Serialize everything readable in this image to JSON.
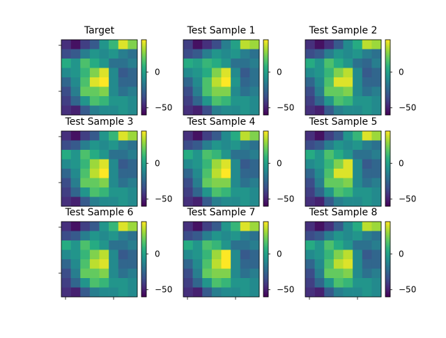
{
  "figure": {
    "background": "#ffffff",
    "colormap": "viridis",
    "colorbar_ticks": [
      0,
      -50
    ]
  },
  "chart_data": [
    {
      "type": "heatmap",
      "title": "Target",
      "vmin": -60,
      "vmax": 45,
      "ylabel_ticks_visible": true,
      "xlabel_ticks_visible": false,
      "matrix": [
        [
          -45,
          -55,
          -40,
          -30,
          -5,
          10,
          40,
          25
        ],
        [
          -35,
          -30,
          -15,
          -5,
          -10,
          -5,
          -15,
          -20
        ],
        [
          5,
          -5,
          15,
          5,
          -5,
          -20,
          -20,
          -15
        ],
        [
          -10,
          -5,
          10,
          25,
          40,
          -10,
          -30,
          -25
        ],
        [
          -25,
          -10,
          15,
          40,
          45,
          -10,
          -25,
          -25
        ],
        [
          -35,
          -15,
          20,
          20,
          25,
          -10,
          -20,
          -15
        ],
        [
          -40,
          -25,
          -5,
          15,
          10,
          -5,
          -5,
          -10
        ],
        [
          -45,
          -50,
          -30,
          -15,
          -10,
          -10,
          -5,
          -10
        ]
      ]
    },
    {
      "type": "heatmap",
      "title": "Test Sample 1",
      "vmin": -60,
      "vmax": 45,
      "ylabel_ticks_visible": false,
      "xlabel_ticks_visible": false,
      "matrix": [
        [
          -40,
          -55,
          -45,
          -35,
          -15,
          0,
          35,
          30
        ],
        [
          -35,
          -30,
          -15,
          -5,
          -10,
          -5,
          -15,
          -20
        ],
        [
          5,
          0,
          10,
          5,
          -5,
          -20,
          -20,
          -15
        ],
        [
          -10,
          -5,
          5,
          25,
          40,
          -10,
          -30,
          -20
        ],
        [
          -25,
          -10,
          15,
          35,
          45,
          -5,
          -25,
          -20
        ],
        [
          -35,
          -15,
          15,
          25,
          25,
          -10,
          -20,
          -15
        ],
        [
          -40,
          -25,
          -5,
          15,
          10,
          -5,
          -5,
          -10
        ],
        [
          -45,
          -50,
          -35,
          -15,
          -10,
          -10,
          -5,
          -10
        ]
      ]
    },
    {
      "type": "heatmap",
      "title": "Test Sample 2",
      "vmin": -60,
      "vmax": 45,
      "ylabel_ticks_visible": false,
      "xlabel_ticks_visible": false,
      "matrix": [
        [
          -45,
          -55,
          -45,
          -30,
          -10,
          5,
          35,
          30
        ],
        [
          -35,
          -30,
          -15,
          -5,
          -10,
          -5,
          -15,
          -20
        ],
        [
          5,
          -5,
          15,
          5,
          -5,
          -20,
          -25,
          -15
        ],
        [
          -10,
          -5,
          10,
          25,
          35,
          -10,
          -30,
          -25
        ],
        [
          -25,
          -10,
          15,
          40,
          40,
          -10,
          -25,
          -25
        ],
        [
          -35,
          -15,
          20,
          20,
          25,
          -10,
          -20,
          -15
        ],
        [
          -40,
          -25,
          -5,
          15,
          10,
          -5,
          -5,
          -10
        ],
        [
          -45,
          -50,
          -30,
          -15,
          -10,
          -10,
          -5,
          -10
        ]
      ]
    },
    {
      "type": "heatmap",
      "title": "Test Sample 3",
      "vmin": -60,
      "vmax": 45,
      "ylabel_ticks_visible": true,
      "xlabel_ticks_visible": false,
      "matrix": [
        [
          -45,
          -55,
          -40,
          -30,
          -5,
          10,
          40,
          30
        ],
        [
          -35,
          -30,
          -15,
          -5,
          -10,
          -5,
          -15,
          -20
        ],
        [
          5,
          -5,
          15,
          5,
          -5,
          -20,
          -20,
          -15
        ],
        [
          -10,
          -5,
          10,
          30,
          40,
          -10,
          -30,
          -25
        ],
        [
          -25,
          -10,
          15,
          35,
          45,
          -10,
          -25,
          -25
        ],
        [
          -35,
          -15,
          20,
          20,
          25,
          -10,
          -20,
          -15
        ],
        [
          -40,
          -25,
          -5,
          15,
          10,
          -5,
          -5,
          -10
        ],
        [
          -45,
          -50,
          -30,
          -15,
          -10,
          -10,
          -5,
          -10
        ]
      ]
    },
    {
      "type": "heatmap",
      "title": "Test Sample 4",
      "vmin": -60,
      "vmax": 45,
      "ylabel_ticks_visible": false,
      "xlabel_ticks_visible": false,
      "matrix": [
        [
          -45,
          -55,
          -40,
          -30,
          -10,
          5,
          35,
          25
        ],
        [
          -35,
          -30,
          -15,
          -5,
          -10,
          -5,
          -15,
          -20
        ],
        [
          5,
          -5,
          15,
          10,
          -5,
          -20,
          -20,
          -15
        ],
        [
          -10,
          -5,
          10,
          30,
          40,
          -10,
          -30,
          -25
        ],
        [
          -25,
          -10,
          15,
          35,
          45,
          -10,
          -25,
          -25
        ],
        [
          -35,
          -15,
          20,
          25,
          25,
          -10,
          -20,
          -15
        ],
        [
          -40,
          -25,
          -5,
          15,
          10,
          -5,
          -5,
          -10
        ],
        [
          -45,
          -50,
          -30,
          -15,
          -10,
          -10,
          -5,
          -10
        ]
      ]
    },
    {
      "type": "heatmap",
      "title": "Test Sample 5",
      "vmin": -60,
      "vmax": 45,
      "ylabel_ticks_visible": false,
      "xlabel_ticks_visible": false,
      "matrix": [
        [
          -45,
          -55,
          -40,
          -30,
          -5,
          10,
          40,
          30
        ],
        [
          -35,
          -30,
          -15,
          -5,
          -10,
          -5,
          -15,
          -20
        ],
        [
          5,
          -5,
          15,
          5,
          -5,
          -20,
          -20,
          -15
        ],
        [
          -10,
          -5,
          10,
          25,
          40,
          -10,
          -30,
          -25
        ],
        [
          -25,
          -10,
          15,
          40,
          40,
          -10,
          -25,
          -25
        ],
        [
          -35,
          -15,
          20,
          20,
          25,
          -10,
          -20,
          -15
        ],
        [
          -40,
          -25,
          -5,
          15,
          10,
          -5,
          -5,
          -10
        ],
        [
          -45,
          -50,
          -30,
          -15,
          -10,
          -10,
          -5,
          -10
        ]
      ]
    },
    {
      "type": "heatmap",
      "title": "Test Sample 6",
      "vmin": -60,
      "vmax": 45,
      "ylabel_ticks_visible": true,
      "xlabel_ticks_visible": true,
      "matrix": [
        [
          -45,
          -55,
          -40,
          -30,
          -5,
          10,
          40,
          30
        ],
        [
          -35,
          -30,
          -15,
          -5,
          -10,
          -5,
          -15,
          -20
        ],
        [
          5,
          -5,
          15,
          5,
          -5,
          -20,
          -20,
          -15
        ],
        [
          -10,
          -5,
          10,
          25,
          35,
          -10,
          -30,
          -25
        ],
        [
          -25,
          -10,
          15,
          35,
          40,
          -10,
          -25,
          -25
        ],
        [
          -35,
          -15,
          20,
          20,
          25,
          -10,
          -20,
          -15
        ],
        [
          -40,
          -25,
          -5,
          15,
          10,
          -5,
          -5,
          -10
        ],
        [
          -45,
          -50,
          -30,
          -15,
          -10,
          -10,
          -5,
          -10
        ]
      ]
    },
    {
      "type": "heatmap",
      "title": "Test Sample 7",
      "vmin": -60,
      "vmax": 45,
      "ylabel_ticks_visible": false,
      "xlabel_ticks_visible": true,
      "matrix": [
        [
          -45,
          -55,
          -40,
          -30,
          -5,
          10,
          40,
          30
        ],
        [
          -35,
          -30,
          -15,
          -5,
          -10,
          -5,
          -15,
          -20
        ],
        [
          5,
          -5,
          15,
          10,
          -5,
          -20,
          -20,
          -15
        ],
        [
          -10,
          -5,
          10,
          30,
          45,
          -10,
          -30,
          -25
        ],
        [
          -25,
          -10,
          15,
          35,
          45,
          -10,
          -25,
          -25
        ],
        [
          -35,
          -15,
          20,
          25,
          25,
          -10,
          -20,
          -15
        ],
        [
          -40,
          -25,
          -5,
          15,
          10,
          -5,
          -5,
          -10
        ],
        [
          -45,
          -50,
          -30,
          -15,
          -10,
          -10,
          -5,
          -10
        ]
      ]
    },
    {
      "type": "heatmap",
      "title": "Test Sample 8",
      "vmin": -60,
      "vmax": 45,
      "ylabel_ticks_visible": false,
      "xlabel_ticks_visible": true,
      "matrix": [
        [
          -45,
          -55,
          -45,
          -30,
          -10,
          5,
          35,
          30
        ],
        [
          -35,
          -30,
          -15,
          -5,
          -10,
          -5,
          -15,
          -20
        ],
        [
          5,
          -5,
          15,
          5,
          -5,
          -20,
          -20,
          -15
        ],
        [
          -10,
          -5,
          10,
          25,
          35,
          -10,
          -30,
          -25
        ],
        [
          -25,
          -10,
          15,
          35,
          40,
          -10,
          -25,
          -25
        ],
        [
          -35,
          -15,
          20,
          20,
          25,
          -10,
          -20,
          -15
        ],
        [
          -40,
          -25,
          -5,
          15,
          10,
          -5,
          -5,
          -10
        ],
        [
          -45,
          -50,
          -30,
          -15,
          -10,
          -10,
          -5,
          -10
        ]
      ]
    }
  ]
}
